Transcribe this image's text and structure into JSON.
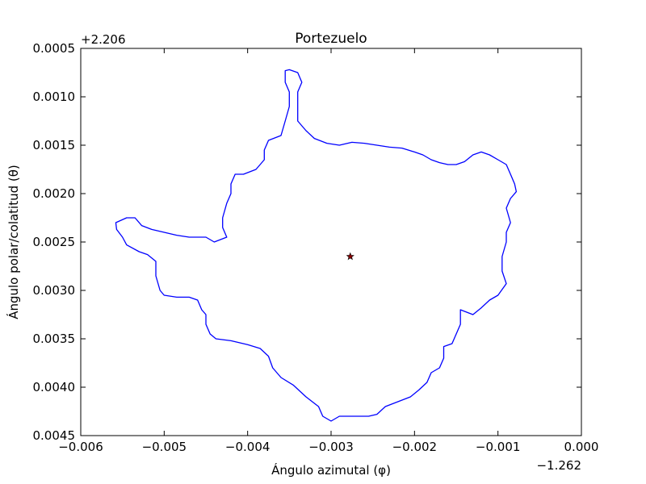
{
  "chart_data": {
    "type": "line",
    "title": "Portezuelo",
    "xlabel": "Ángulo azimutal (φ)",
    "ylabel": "Ángulo polar/colatitud (θ)",
    "x_offset_label": "−1.262",
    "y_offset_label": "+2.206",
    "xlim": [
      -0.006,
      0.0
    ],
    "ylim": [
      0.0005,
      0.0045
    ],
    "y_inverted": true,
    "xticks": [
      -0.006,
      -0.005,
      -0.004,
      -0.003,
      -0.002,
      -0.001,
      0.0
    ],
    "xtick_labels": [
      "−0.006",
      "−0.005",
      "−0.004",
      "−0.003",
      "−0.002",
      "−0.001",
      "0.000"
    ],
    "yticks": [
      0.0005,
      0.001,
      0.0015,
      0.002,
      0.0025,
      0.003,
      0.0035,
      0.004,
      0.0045
    ],
    "ytick_labels": [
      "0.0005",
      "0.0010",
      "0.0015",
      "0.0020",
      "0.0025",
      "0.0030",
      "0.0035",
      "0.0040",
      "0.0045"
    ],
    "grid": false,
    "colors": {
      "outline": "#0000ff",
      "center": "#8b0000"
    },
    "series": [
      {
        "points": [
          [
            -0.00355,
            0.00073
          ],
          [
            -0.00355,
            0.00085
          ],
          [
            -0.0035,
            0.00095
          ],
          [
            -0.0035,
            0.0011
          ],
          [
            -0.00355,
            0.00125
          ],
          [
            -0.0036,
            0.0014
          ],
          [
            -0.00375,
            0.00145
          ],
          [
            -0.0038,
            0.00155
          ],
          [
            -0.0038,
            0.00165
          ],
          [
            -0.0039,
            0.00175
          ],
          [
            -0.00405,
            0.0018
          ],
          [
            -0.00415,
            0.0018
          ],
          [
            -0.0042,
            0.0019
          ],
          [
            -0.0042,
            0.002
          ],
          [
            -0.00425,
            0.0021
          ],
          [
            -0.0043,
            0.00225
          ],
          [
            -0.0043,
            0.00235
          ],
          [
            -0.00425,
            0.00245
          ],
          [
            -0.0044,
            0.0025
          ],
          [
            -0.0045,
            0.00245
          ],
          [
            -0.0046,
            0.00245
          ],
          [
            -0.0047,
            0.00245
          ],
          [
            -0.00485,
            0.00243
          ],
          [
            -0.005,
            0.0024
          ],
          [
            -0.00515,
            0.00237
          ],
          [
            -0.00527,
            0.00233
          ],
          [
            -0.00535,
            0.00225
          ],
          [
            -0.00545,
            0.00225
          ],
          [
            -0.00558,
            0.0023
          ],
          [
            -0.00557,
            0.00237
          ],
          [
            -0.0055,
            0.00245
          ],
          [
            -0.00545,
            0.00253
          ],
          [
            -0.0053,
            0.0026
          ],
          [
            -0.0052,
            0.00263
          ],
          [
            -0.0051,
            0.0027
          ],
          [
            -0.0051,
            0.00285
          ],
          [
            -0.00505,
            0.003
          ],
          [
            -0.005,
            0.00305
          ],
          [
            -0.00485,
            0.00307
          ],
          [
            -0.0047,
            0.00307
          ],
          [
            -0.0046,
            0.0031
          ],
          [
            -0.00455,
            0.0032
          ],
          [
            -0.0045,
            0.00325
          ],
          [
            -0.0045,
            0.00335
          ],
          [
            -0.00445,
            0.00345
          ],
          [
            -0.00438,
            0.0035
          ],
          [
            -0.0042,
            0.00352
          ],
          [
            -0.004,
            0.00356
          ],
          [
            -0.00385,
            0.0036
          ],
          [
            -0.00375,
            0.00368
          ],
          [
            -0.0037,
            0.0038
          ],
          [
            -0.0036,
            0.0039
          ],
          [
            -0.00345,
            0.00398
          ],
          [
            -0.0033,
            0.0041
          ],
          [
            -0.00315,
            0.0042
          ],
          [
            -0.0031,
            0.0043
          ],
          [
            -0.003,
            0.00435
          ],
          [
            -0.0029,
            0.0043
          ],
          [
            -0.00275,
            0.0043
          ],
          [
            -0.00255,
            0.0043
          ],
          [
            -0.00245,
            0.00428
          ],
          [
            -0.00235,
            0.0042
          ],
          [
            -0.0022,
            0.00415
          ],
          [
            -0.00205,
            0.0041
          ],
          [
            -0.00195,
            0.00403
          ],
          [
            -0.00185,
            0.00395
          ],
          [
            -0.0018,
            0.00385
          ],
          [
            -0.0017,
            0.0038
          ],
          [
            -0.00165,
            0.0037
          ],
          [
            -0.00165,
            0.00358
          ],
          [
            -0.00155,
            0.00355
          ],
          [
            -0.0015,
            0.00345
          ],
          [
            -0.00145,
            0.00335
          ],
          [
            -0.00145,
            0.0032
          ],
          [
            -0.0013,
            0.00325
          ],
          [
            -0.0012,
            0.00318
          ],
          [
            -0.0011,
            0.0031
          ],
          [
            -0.001,
            0.00305
          ],
          [
            -0.0009,
            0.00293
          ],
          [
            -0.00095,
            0.0028
          ],
          [
            -0.00095,
            0.00265
          ],
          [
            -0.0009,
            0.0025
          ],
          [
            -0.0009,
            0.0024
          ],
          [
            -0.00085,
            0.0023
          ],
          [
            -0.0009,
            0.00215
          ],
          [
            -0.00085,
            0.00205
          ],
          [
            -0.00078,
            0.00198
          ],
          [
            -0.0008,
            0.0019
          ],
          [
            -0.00085,
            0.0018
          ],
          [
            -0.0009,
            0.0017
          ],
          [
            -0.001,
            0.00165
          ],
          [
            -0.0011,
            0.0016
          ],
          [
            -0.0012,
            0.00157
          ],
          [
            -0.0013,
            0.0016
          ],
          [
            -0.0014,
            0.00167
          ],
          [
            -0.0015,
            0.0017
          ],
          [
            -0.0016,
            0.0017
          ],
          [
            -0.0017,
            0.00168
          ],
          [
            -0.0018,
            0.00165
          ],
          [
            -0.0019,
            0.0016
          ],
          [
            -0.002,
            0.00157
          ],
          [
            -0.00215,
            0.00153
          ],
          [
            -0.0023,
            0.00152
          ],
          [
            -0.00245,
            0.0015
          ],
          [
            -0.0026,
            0.00148
          ],
          [
            -0.00275,
            0.00147
          ],
          [
            -0.0029,
            0.0015
          ],
          [
            -0.00305,
            0.00148
          ],
          [
            -0.0032,
            0.00143
          ],
          [
            -0.0033,
            0.00135
          ],
          [
            -0.0034,
            0.00125
          ],
          [
            -0.0034,
            0.0011
          ],
          [
            -0.0034,
            0.00095
          ],
          [
            -0.00335,
            0.00085
          ],
          [
            -0.0034,
            0.00075
          ],
          [
            -0.0035,
            0.00072
          ],
          [
            -0.00355,
            0.00073
          ]
        ]
      }
    ],
    "center_point": {
      "x": -0.00277,
      "y": 0.00265
    }
  }
}
